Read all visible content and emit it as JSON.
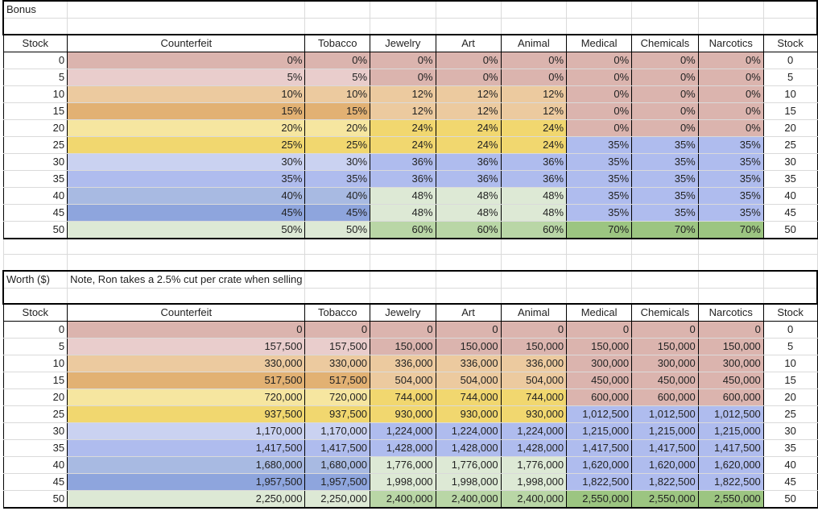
{
  "palette": {
    "red": "#dbb4ae",
    "pink": "#e9cdcc",
    "orange1": "#ecca9f",
    "orange2": "#e2b173",
    "yellow1": "#f6e6a0",
    "yellow2": "#f1d76f",
    "blue1": "#cad2f1",
    "blue2": "#afbcee",
    "blue3": "#a8bae2",
    "blue4": "#8ea5dd",
    "green1": "#dde9d5",
    "green2": "#b9d6a6",
    "green3": "#9cc581"
  },
  "column_colors": [
    [
      "red",
      "pink",
      "orange1",
      "orange2",
      "yellow1",
      "yellow2",
      "blue1",
      "blue2",
      "blue3",
      "blue4",
      "green1"
    ],
    [
      "red",
      "pink",
      "orange1",
      "orange2",
      "yellow1",
      "yellow2",
      "blue1",
      "blue2",
      "blue3",
      "blue4",
      "green1"
    ],
    [
      "red",
      "red",
      "orange1",
      "orange1",
      "yellow2",
      "yellow2",
      "blue2",
      "blue2",
      "green1",
      "green1",
      "green2"
    ],
    [
      "red",
      "red",
      "orange1",
      "orange1",
      "yellow2",
      "yellow2",
      "blue2",
      "blue2",
      "green1",
      "green1",
      "green2"
    ],
    [
      "red",
      "red",
      "orange1",
      "orange1",
      "yellow2",
      "yellow2",
      "blue2",
      "blue2",
      "green1",
      "green1",
      "green2"
    ],
    [
      "red",
      "red",
      "red",
      "red",
      "red",
      "blue2",
      "blue2",
      "blue2",
      "blue2",
      "blue2",
      "green3"
    ],
    [
      "red",
      "red",
      "red",
      "red",
      "red",
      "blue2",
      "blue2",
      "blue2",
      "blue2",
      "blue2",
      "green3"
    ],
    [
      "red",
      "red",
      "red",
      "red",
      "red",
      "blue2",
      "blue2",
      "blue2",
      "blue2",
      "blue2",
      "green3"
    ]
  ],
  "headers": [
    "Stock",
    "Counterfeit",
    "Tobacco",
    "Jewelry",
    "Art",
    "Animal",
    "Medical",
    "Chemicals",
    "Narcotics",
    "Stock"
  ],
  "stock": [
    "0",
    "5",
    "10",
    "15",
    "20",
    "25",
    "30",
    "35",
    "40",
    "45",
    "50"
  ],
  "tables": [
    {
      "title": "Bonus",
      "note": "",
      "rows": [
        [
          "0%",
          "0%",
          "0%",
          "0%",
          "0%",
          "0%",
          "0%",
          "0%"
        ],
        [
          "5%",
          "5%",
          "0%",
          "0%",
          "0%",
          "0%",
          "0%",
          "0%"
        ],
        [
          "10%",
          "10%",
          "12%",
          "12%",
          "12%",
          "0%",
          "0%",
          "0%"
        ],
        [
          "15%",
          "15%",
          "12%",
          "12%",
          "12%",
          "0%",
          "0%",
          "0%"
        ],
        [
          "20%",
          "20%",
          "24%",
          "24%",
          "24%",
          "0%",
          "0%",
          "0%"
        ],
        [
          "25%",
          "25%",
          "24%",
          "24%",
          "24%",
          "35%",
          "35%",
          "35%"
        ],
        [
          "30%",
          "30%",
          "36%",
          "36%",
          "36%",
          "35%",
          "35%",
          "35%"
        ],
        [
          "35%",
          "35%",
          "36%",
          "36%",
          "36%",
          "35%",
          "35%",
          "35%"
        ],
        [
          "40%",
          "40%",
          "48%",
          "48%",
          "48%",
          "35%",
          "35%",
          "35%"
        ],
        [
          "45%",
          "45%",
          "48%",
          "48%",
          "48%",
          "35%",
          "35%",
          "35%"
        ],
        [
          "50%",
          "50%",
          "60%",
          "60%",
          "60%",
          "70%",
          "70%",
          "70%"
        ]
      ]
    },
    {
      "title": "Worth ($)",
      "note": "Note, Ron takes a 2.5% cut per crate when selling",
      "rows": [
        [
          "0",
          "0",
          "0",
          "0",
          "0",
          "0",
          "0",
          "0"
        ],
        [
          "157,500",
          "157,500",
          "150,000",
          "150,000",
          "150,000",
          "150,000",
          "150,000",
          "150,000"
        ],
        [
          "330,000",
          "330,000",
          "336,000",
          "336,000",
          "336,000",
          "300,000",
          "300,000",
          "300,000"
        ],
        [
          "517,500",
          "517,500",
          "504,000",
          "504,000",
          "504,000",
          "450,000",
          "450,000",
          "450,000"
        ],
        [
          "720,000",
          "720,000",
          "744,000",
          "744,000",
          "744,000",
          "600,000",
          "600,000",
          "600,000"
        ],
        [
          "937,500",
          "937,500",
          "930,000",
          "930,000",
          "930,000",
          "1,012,500",
          "1,012,500",
          "1,012,500"
        ],
        [
          "1,170,000",
          "1,170,000",
          "1,224,000",
          "1,224,000",
          "1,224,000",
          "1,215,000",
          "1,215,000",
          "1,215,000"
        ],
        [
          "1,417,500",
          "1,417,500",
          "1,428,000",
          "1,428,000",
          "1,428,000",
          "1,417,500",
          "1,417,500",
          "1,417,500"
        ],
        [
          "1,680,000",
          "1,680,000",
          "1,776,000",
          "1,776,000",
          "1,776,000",
          "1,620,000",
          "1,620,000",
          "1,620,000"
        ],
        [
          "1,957,500",
          "1,957,500",
          "1,998,000",
          "1,998,000",
          "1,998,000",
          "1,822,500",
          "1,822,500",
          "1,822,500"
        ],
        [
          "2,250,000",
          "2,250,000",
          "2,400,000",
          "2,400,000",
          "2,400,000",
          "2,550,000",
          "2,550,000",
          "2,550,000"
        ]
      ]
    }
  ]
}
